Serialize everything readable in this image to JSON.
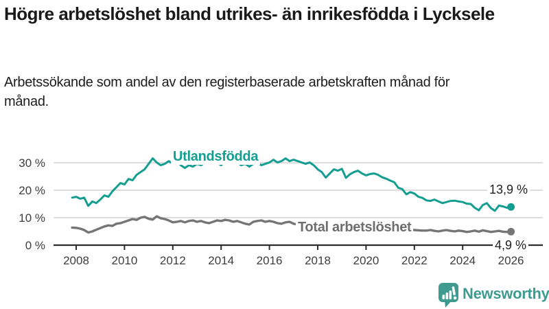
{
  "header": {
    "title": "Högre arbetslöshet bland utrikes- än inrikesfödda i Lycksele",
    "subtitle": "Arbetssökande som andel av den registerbaserade arbetskraften månad för månad."
  },
  "chart_data": {
    "type": "line",
    "title": "Högre arbetslöshet bland utrikes- än inrikesfödda i Lycksele",
    "subtitle": "Arbetssökande som andel av den registerbaserade arbetskraften månad för månad.",
    "unit": "%",
    "grid": "horizontal",
    "legend_position": "inline-labels",
    "x_axis": {
      "ticks": [
        2008,
        2010,
        2012,
        2014,
        2016,
        2018,
        2020,
        2022,
        2024,
        2026
      ],
      "range": [
        2007.6,
        2026.4
      ]
    },
    "y_axis": {
      "range": [
        0,
        33
      ],
      "ticks": [
        {
          "value": 0,
          "label": "0 %"
        },
        {
          "value": 10,
          "label": "10 %"
        },
        {
          "value": 20,
          "label": "20 %"
        },
        {
          "value": 30,
          "label": "30 %"
        }
      ]
    },
    "series": [
      {
        "name": "Utlandsfödda",
        "color": "#149E91",
        "end_label": "13,9 %",
        "end_value": 13.9,
        "start": 2007.833,
        "step": 0.16667,
        "values": [
          17.3,
          17.6,
          16.9,
          17.3,
          14.3,
          15.9,
          15.3,
          16.6,
          18.1,
          17.6,
          19.6,
          21.1,
          22.6,
          22.1,
          24.1,
          23.6,
          25.6,
          26.6,
          27.6,
          29.6,
          31.6,
          30.1,
          29.1,
          29.6,
          30.6,
          29.6,
          30.6,
          29.1,
          28.1,
          29.1,
          28.6,
          29.6,
          29.1,
          30.1,
          30.6,
          29.6,
          30.1,
          29.1,
          30.6,
          31.1,
          29.6,
          30.1,
          29.1,
          29.6,
          28.6,
          29.6,
          30.1,
          29.1,
          29.6,
          30.1,
          31.1,
          30.1,
          30.6,
          31.6,
          30.6,
          31.1,
          30.6,
          30.1,
          29.6,
          30.1,
          29.1,
          27.6,
          26.6,
          24.6,
          26.1,
          27.6,
          27.1,
          27.8,
          24.5,
          25.8,
          26.6,
          27.1,
          26.1,
          25.4,
          25.9,
          26.1,
          25.6,
          24.7,
          24.2,
          23.5,
          22.9,
          20.9,
          20.4,
          18.5,
          19.3,
          18.8,
          17.6,
          17.2,
          16.3,
          16.1,
          16.6,
          15.9,
          15.3,
          15.7,
          16.1,
          16.2,
          15.9,
          15.7,
          15.1,
          15.0,
          13.6,
          12.7,
          14.6,
          15.3,
          13.5,
          12.5,
          14.4,
          14.1,
          13.6,
          13.9
        ]
      },
      {
        "name": "Total arbetslöshet",
        "color": "#757575",
        "end_label": "4,9 %",
        "end_value": 4.9,
        "start": 2007.833,
        "step": 0.16667,
        "values": [
          6.4,
          6.3,
          6.0,
          5.5,
          4.6,
          5.0,
          5.6,
          6.2,
          6.8,
          7.2,
          7.0,
          7.8,
          8.0,
          8.5,
          9.0,
          9.5,
          9.2,
          10.0,
          10.3,
          9.6,
          9.3,
          10.5,
          9.8,
          9.5,
          9.0,
          8.3,
          8.5,
          8.8,
          8.3,
          8.8,
          9.0,
          8.5,
          8.8,
          8.3,
          8.0,
          8.5,
          9.0,
          8.8,
          9.2,
          9.0,
          8.5,
          8.8,
          8.3,
          7.8,
          7.5,
          8.5,
          8.8,
          9.0,
          8.5,
          8.8,
          8.5,
          8.0,
          7.8,
          8.3,
          8.5,
          7.8,
          7.5,
          8.0,
          8.2,
          8.0,
          7.6,
          7.2,
          6.9,
          6.6,
          6.9,
          7.1,
          6.8,
          6.6,
          6.4,
          6.6,
          6.9,
          6.7,
          6.5,
          6.3,
          6.8,
          7.3,
          7.1,
          6.9,
          6.6,
          6.4,
          6.2,
          6.0,
          5.8,
          5.7,
          5.6,
          5.5,
          5.4,
          5.3,
          5.3,
          5.5,
          5.2,
          5.0,
          5.3,
          5.5,
          5.2,
          5.0,
          5.3,
          5.1,
          4.8,
          5.0,
          5.3,
          4.9,
          5.4,
          5.1,
          4.8,
          5.0,
          5.2,
          4.9,
          4.8,
          4.9
        ]
      }
    ],
    "colors": {
      "grid": "#d8d8d8",
      "axis": "#2b2b2b",
      "tick_text": "#3d3d3d"
    }
  },
  "footer": {
    "brand": "Newsworthy",
    "brand_color": "#3F9B90"
  }
}
